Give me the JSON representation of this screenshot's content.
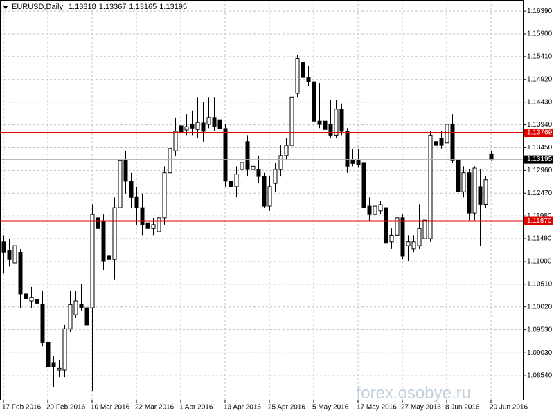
{
  "chart_data": {
    "type": "candlestick",
    "title": "EURUSD,Daily",
    "watermark": "forex.osobye.ru",
    "categories": [
      "17 Feb 2016",
      null,
      null,
      null,
      null,
      null,
      null,
      null,
      "29 Feb 2016",
      null,
      null,
      null,
      null,
      null,
      null,
      null,
      "10 Mar 2016",
      null,
      null,
      null,
      null,
      null,
      null,
      null,
      "22 Mar 2016",
      null,
      null,
      null,
      null,
      null,
      null,
      null,
      "1 Apr 2016",
      null,
      null,
      null,
      null,
      null,
      null,
      null,
      "13 Apr 2016",
      null,
      null,
      null,
      null,
      null,
      null,
      null,
      "25 Apr 2016",
      null,
      null,
      null,
      null,
      null,
      null,
      null,
      "5 May 2016",
      null,
      null,
      null,
      null,
      null,
      null,
      null,
      "17 May 2016",
      null,
      null,
      null,
      null,
      null,
      null,
      null,
      "27 May 2016",
      null,
      null,
      null,
      null,
      null,
      null,
      null,
      "8 Jun 2016",
      null,
      null,
      null,
      null,
      null,
      null,
      null,
      "20 Jun 2016"
    ],
    "open": [
      1.1142,
      1.1124,
      1.1097,
      1.1119,
      1.103,
      1.1015,
      1.1018,
      1.1007,
      1.0925,
      1.0881,
      1.0866,
      1.0866,
      1.0955,
      1.0985,
      1.1007,
      1.1,
      1.1,
      1.1194,
      1.1186,
      1.1112,
      1.1104,
      1.1216,
      1.1317,
      1.1273,
      1.1238,
      1.1216,
      1.1183,
      1.1171,
      1.1164,
      1.1194,
      1.1291,
      1.1338,
      1.1392,
      1.1383,
      1.1395,
      1.1384,
      1.1398,
      1.1395,
      1.141,
      1.1405,
      1.1386,
      1.1273,
      1.1261,
      1.1298,
      1.1358,
      1.1298,
      1.1298,
      1.1283,
      1.1219,
      1.1268,
      1.1298,
      1.1328,
      1.135,
      1.1462,
      1.1529,
      1.1496,
      1.1487,
      1.1402,
      1.1402,
      1.1395,
      1.1372,
      1.1428,
      1.138,
      1.1317,
      1.1317,
      1.1313,
      1.1219,
      1.1201,
      1.1209,
      1.1216,
      1.1142,
      1.1156,
      1.1194,
      1.1134,
      1.1127,
      1.1134,
      1.1149,
      1.1149,
      1.1358,
      1.1365,
      1.1355,
      1.1395,
      1.1317,
      1.125,
      1.1291,
      1.1204,
      1.1261,
      1.1223,
      1.13318
    ],
    "high": [
      1.1156,
      1.1149,
      1.1149,
      1.1127,
      1.1052,
      1.1045,
      1.1037,
      1.1037,
      1.0932,
      1.0896,
      1.0888,
      1.0963,
      1.1037,
      1.1037,
      1.1052,
      1.1037,
      1.1223,
      1.1216,
      1.1201,
      1.1149,
      1.1238,
      1.1343,
      1.1338,
      1.1291,
      1.1261,
      1.1246,
      1.1201,
      1.1194,
      1.1216,
      1.1305,
      1.1372,
      1.141,
      1.144,
      1.1417,
      1.1425,
      1.1454,
      1.1443,
      1.1454,
      1.1454,
      1.1466,
      1.1395,
      1.1298,
      1.1305,
      1.1335,
      1.1372,
      1.1387,
      1.1328,
      1.1291,
      1.1283,
      1.1313,
      1.135,
      1.1365,
      1.1469,
      1.1544,
      1.1618,
      1.1521,
      1.1499,
      1.1484,
      1.1425,
      1.1447,
      1.1447,
      1.144,
      1.1387,
      1.1343,
      1.1343,
      1.132,
      1.1238,
      1.1238,
      1.1231,
      1.1223,
      1.1171,
      1.1209,
      1.1201,
      1.1156,
      1.1156,
      1.1223,
      1.1194,
      1.138,
      1.1395,
      1.138,
      1.1417,
      1.1417,
      1.1328,
      1.1305,
      1.1298,
      1.1305,
      1.1298,
      1.1283,
      1.13367
    ],
    "low": [
      1.1074,
      1.1089,
      1.1089,
      1.1,
      1.1007,
      1.1,
      1.1,
      1.0918,
      1.0866,
      1.0829,
      1.0851,
      1.0851,
      1.0948,
      1.0978,
      1.0993,
      1.0948,
      1.0821,
      1.1149,
      1.1082,
      1.1089,
      1.106,
      1.1209,
      1.1246,
      1.1216,
      1.1179,
      1.1156,
      1.1149,
      1.1156,
      1.1156,
      1.1179,
      1.1283,
      1.1328,
      1.1365,
      1.1372,
      1.1372,
      1.1365,
      1.1358,
      1.1387,
      1.138,
      1.1372,
      1.1261,
      1.1234,
      1.1238,
      1.1283,
      1.1283,
      1.1283,
      1.1268,
      1.1216,
      1.1209,
      1.125,
      1.1283,
      1.132,
      1.1343,
      1.1454,
      1.1487,
      1.1477,
      1.1395,
      1.1387,
      1.138,
      1.1365,
      1.1365,
      1.1372,
      1.1291,
      1.1305,
      1.1302,
      1.1209,
      1.1186,
      1.1194,
      1.1201,
      1.1134,
      1.1127,
      1.1142,
      1.1104,
      1.11,
      1.1119,
      1.1127,
      1.1142,
      1.1142,
      1.1343,
      1.1343,
      1.1343,
      1.1313,
      1.1246,
      1.1238,
      1.1189,
      1.1189,
      1.1134,
      1.1216,
      1.13165
    ],
    "close": [
      1.1119,
      1.1104,
      1.1134,
      1.103,
      1.1019,
      1.1022,
      1.101,
      1.0925,
      1.0873,
      1.0873,
      1.087,
      1.0955,
      1.1007,
      1.1015,
      1.1,
      1.0963,
      1.1201,
      1.1171,
      1.11,
      1.1104,
      1.1216,
      1.1317,
      1.1273,
      1.1238,
      1.1216,
      1.1179,
      1.1171,
      1.1179,
      1.1194,
      1.1291,
      1.1343,
      1.138,
      1.1377,
      1.139,
      1.1387,
      1.1399,
      1.138,
      1.141,
      1.139,
      1.1386,
      1.1273,
      1.1261,
      1.1288,
      1.1313,
      1.1298,
      1.1305,
      1.1283,
      1.1219,
      1.1261,
      1.1298,
      1.1328,
      1.135,
      1.1454,
      1.1537,
      1.1496,
      1.1487,
      1.1402,
      1.1395,
      1.1384,
      1.1372,
      1.1428,
      1.138,
      1.1305,
      1.1311,
      1.1309,
      1.1216,
      1.1201,
      1.1219,
      1.1222,
      1.1139,
      1.1156,
      1.1194,
      1.1112,
      1.1142,
      1.1142,
      1.1171,
      1.1189,
      1.1372,
      1.135,
      1.135,
      1.1395,
      1.1317,
      1.125,
      1.1291,
      1.1204,
      1.1301,
      1.1223,
      1.1276,
      1.13195
    ],
    "hlines": [
      {
        "value": 1.13769,
        "color": "#e00000"
      },
      {
        "value": 1.1187,
        "label": "1.11870",
        "color": "#e00000"
      }
    ],
    "ylim": [
      1.0802,
      1.1663
    ],
    "yticks": [
      {
        "value": 1.1639,
        "label": "1.16390"
      },
      {
        "value": 1.159,
        "label": "1.15900"
      },
      {
        "value": 1.1541,
        "label": "1.15410"
      },
      {
        "value": 1.1492,
        "label": "1.14920"
      },
      {
        "value": 1.1443,
        "label": "1.14430"
      },
      {
        "value": 1.1394,
        "label": "1.13940"
      },
      {
        "value": 1.1345,
        "label": "1.13450"
      },
      {
        "value": 1.1296,
        "label": "1.12960"
      },
      {
        "value": 1.1247,
        "label": "1.12470"
      },
      {
        "value": 1.1198,
        "label": "1.11980"
      },
      {
        "value": 1.1149,
        "label": "1.11490"
      },
      {
        "value": 1.11,
        "label": "1.11000"
      },
      {
        "value": 1.1051,
        "label": "1.10510"
      },
      {
        "value": 1.1002,
        "label": "1.10020"
      },
      {
        "value": 1.0953,
        "label": "1.09530"
      },
      {
        "value": 1.0903,
        "label": "1.09030"
      },
      {
        "value": 1.0854,
        "label": "1.08540"
      }
    ],
    "grid": true,
    "bull_color": "#ffffff",
    "bear_color": "#000000"
  }
}
